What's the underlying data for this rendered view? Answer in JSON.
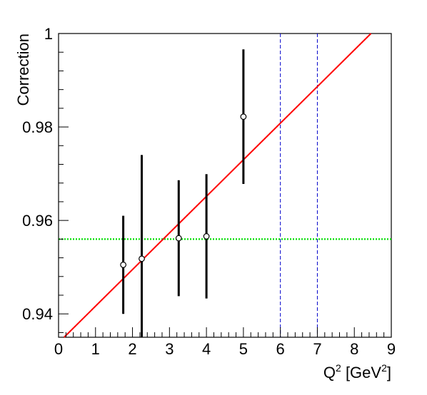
{
  "chart_data": {
    "type": "scatter",
    "title": "",
    "xlabel": {
      "base": "Q",
      "sup": "2",
      "mid": " [GeV",
      "sup2": "2",
      "end": "]"
    },
    "ylabel": "Correction",
    "xlim": [
      0,
      9
    ],
    "ylim": [
      0.935,
      1.0
    ],
    "x_ticks": [
      0,
      1,
      2,
      3,
      4,
      5,
      6,
      7,
      8,
      9
    ],
    "x_tick_labels": [
      "0",
      "1",
      "2",
      "3",
      "4",
      "5",
      "6",
      "7",
      "8",
      "9"
    ],
    "y_ticks": [
      0.94,
      0.96,
      0.98,
      1.0
    ],
    "y_tick_labels": [
      "0.94",
      "0.96",
      "0.98",
      "1"
    ],
    "points": [
      {
        "x": 1.75,
        "y": 0.9505,
        "err": 0.0105
      },
      {
        "x": 2.25,
        "y": 0.9518,
        "err": 0.0222
      },
      {
        "x": 3.25,
        "y": 0.9562,
        "err": 0.0124
      },
      {
        "x": 4.0,
        "y": 0.9566,
        "err": 0.0133
      },
      {
        "x": 5.0,
        "y": 0.9822,
        "err": 0.0144
      }
    ],
    "fit_line": {
      "x1": 0.15,
      "y1": 0.935,
      "x2": 8.45,
      "y2": 1.0,
      "color": "#ff0000"
    },
    "constant_line": {
      "y": 0.956,
      "color": "#00dd00"
    },
    "vertical_lines": [
      {
        "x": 6,
        "color": "#0000cc"
      },
      {
        "x": 7,
        "color": "#0000cc"
      }
    ]
  }
}
